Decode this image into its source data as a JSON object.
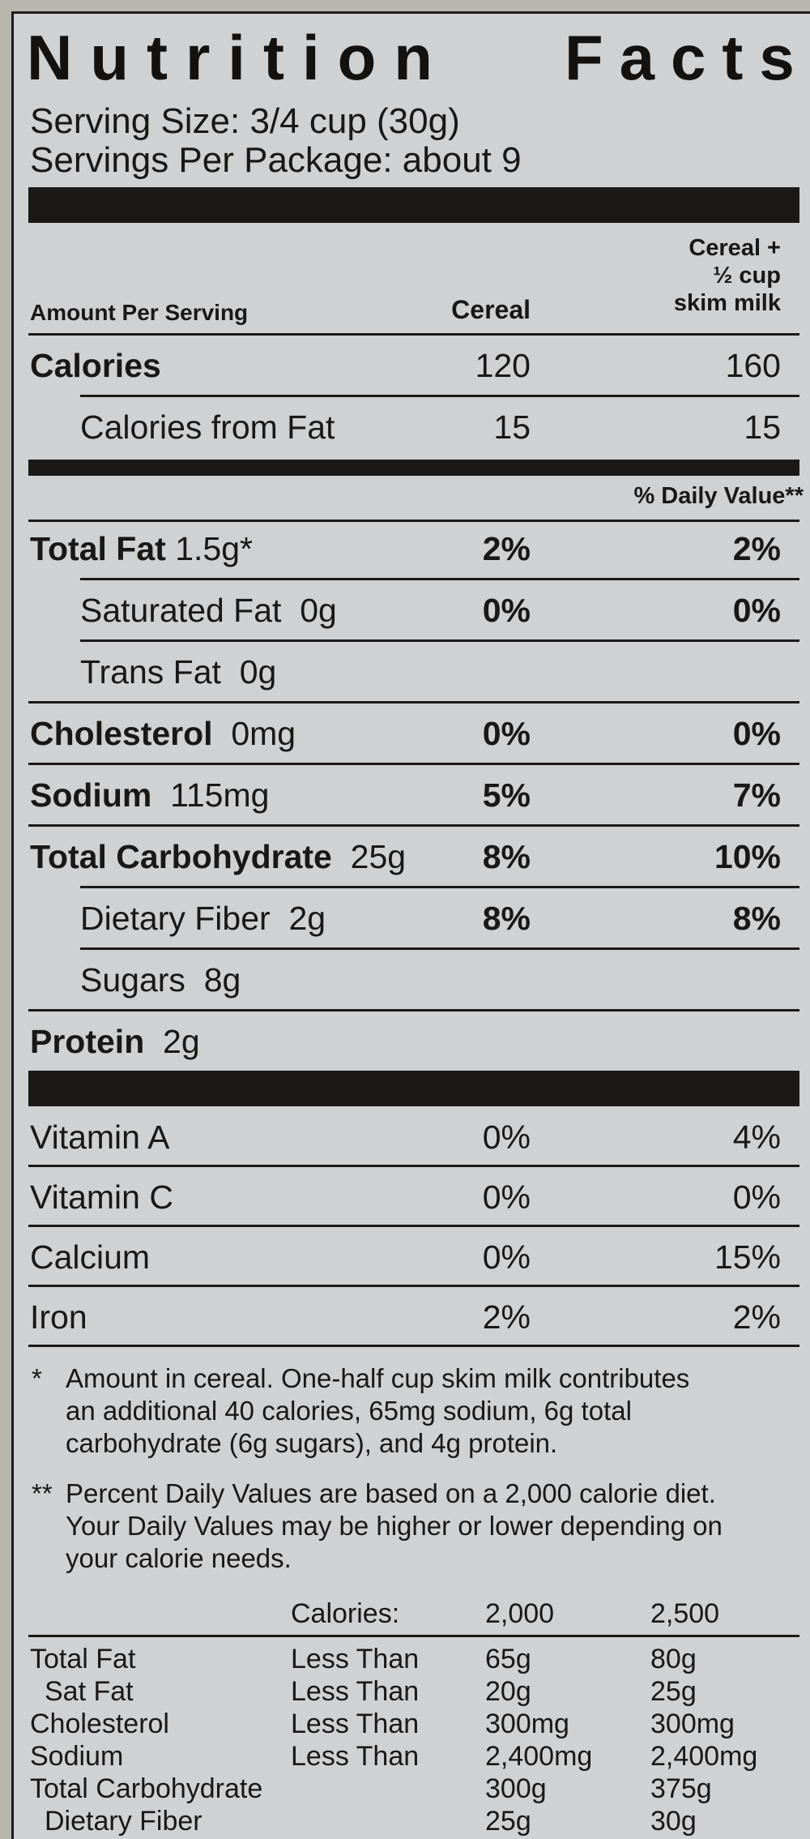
{
  "title_word1": "Nutrition",
  "title_word2": "Facts",
  "serving_size": "Serving Size: 3/4 cup (30g)",
  "servings_per_package": "Servings Per Package: about 9",
  "header": {
    "amount_per_serving": "Amount Per Serving",
    "col1": "Cereal",
    "col2_line1": "Cereal +",
    "col2_line2": "½ cup",
    "col2_line3": "skim milk"
  },
  "calories": {
    "label": "Calories",
    "cereal": "120",
    "milk": "160"
  },
  "calories_from_fat": {
    "label": "Calories from Fat",
    "cereal": "15",
    "milk": "15"
  },
  "daily_value_header": "% Daily Value**",
  "nutrients": [
    {
      "name": "Total Fat",
      "amount": "1.5g*",
      "cereal": "2%",
      "milk": "2%"
    },
    {
      "name": "Saturated Fat",
      "amount": "0g",
      "cereal": "0%",
      "milk": "0%"
    },
    {
      "name": "Trans Fat",
      "amount": "0g",
      "cereal": "",
      "milk": ""
    },
    {
      "name": "Cholesterol",
      "amount": "0mg",
      "cereal": "0%",
      "milk": "0%"
    },
    {
      "name": "Sodium",
      "amount": "115mg",
      "cereal": "5%",
      "milk": "7%"
    },
    {
      "name": "Total Carbohydrate",
      "amount": "25g",
      "cereal": "8%",
      "milk": "10%"
    },
    {
      "name": "Dietary Fiber",
      "amount": "2g",
      "cereal": "8%",
      "milk": "8%"
    },
    {
      "name": "Sugars",
      "amount": "8g",
      "cereal": "",
      "milk": ""
    },
    {
      "name": "Protein",
      "amount": "2g",
      "cereal": "",
      "milk": ""
    }
  ],
  "vitamins": [
    {
      "name": "Vitamin A",
      "cereal": "0%",
      "milk": "4%"
    },
    {
      "name": "Vitamin C",
      "cereal": "0%",
      "milk": "0%"
    },
    {
      "name": "Calcium",
      "cereal": "0%",
      "milk": "15%"
    },
    {
      "name": "Iron",
      "cereal": "2%",
      "milk": "2%"
    }
  ],
  "footnote1": {
    "marker": "*",
    "line1": "Amount in cereal. One-half cup skim milk contributes",
    "line2": "an additional 40 calories, 65mg sodium, 6g total",
    "line3": "carbohydrate (6g sugars), and 4g protein."
  },
  "footnote2": {
    "marker": "**",
    "line1": "Percent Daily Values are based on a 2,000 calorie diet.",
    "line2": "Your Daily Values may be higher or lower depending on",
    "line3": "your calorie needs."
  },
  "reference_table": {
    "header": {
      "label": "Calories:",
      "col1": "2,000",
      "col2": "2,500"
    },
    "rows": [
      {
        "name": "Total Fat",
        "qualifier": "Less Than",
        "col1": "65g",
        "col2": "80g"
      },
      {
        "name": "Sat Fat",
        "qualifier": "Less Than",
        "col1": "20g",
        "col2": "25g"
      },
      {
        "name": "Cholesterol",
        "qualifier": "Less Than",
        "col1": "300mg",
        "col2": "300mg"
      },
      {
        "name": "Sodium",
        "qualifier": "Less Than",
        "col1": "2,400mg",
        "col2": "2,400mg"
      },
      {
        "name": "Total Carbohydrate",
        "qualifier": "",
        "col1": "300g",
        "col2": "375g"
      },
      {
        "name": "Dietary Fiber",
        "qualifier": "",
        "col1": "25g",
        "col2": "30g"
      }
    ]
  }
}
